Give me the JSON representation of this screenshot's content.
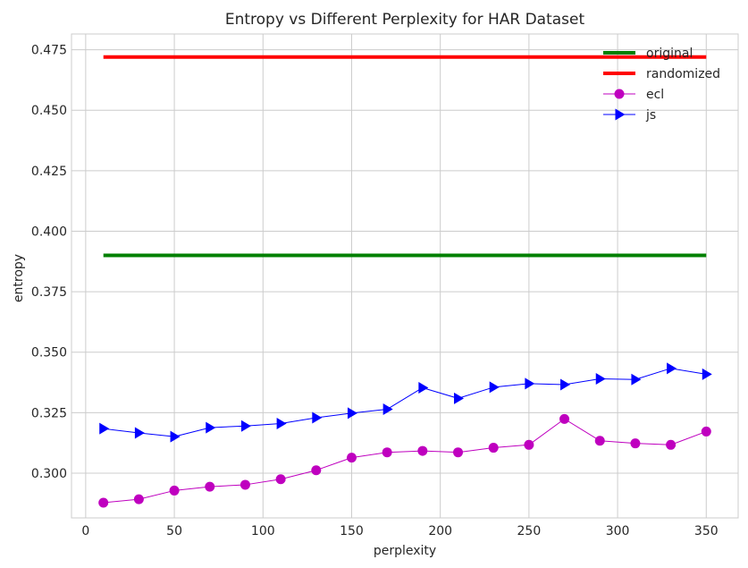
{
  "chart_data": {
    "type": "line",
    "title": "Entropy vs Different Perplexity for HAR Dataset",
    "xlabel": "perplexity",
    "ylabel": "entropy",
    "xlim": [
      -8,
      368
    ],
    "ylim": [
      0.2815,
      0.4815
    ],
    "xticks": [
      0,
      50,
      100,
      150,
      200,
      250,
      300,
      350
    ],
    "xtick_labels": [
      "0",
      "50",
      "100",
      "150",
      "200",
      "250",
      "300",
      "350"
    ],
    "yticks": [
      0.3,
      0.325,
      0.35,
      0.375,
      0.4,
      0.425,
      0.45,
      0.475
    ],
    "ytick_labels": [
      "0.300",
      "0.325",
      "0.350",
      "0.375",
      "0.400",
      "0.425",
      "0.450",
      "0.475"
    ],
    "grid": true,
    "legend_position": "top-right",
    "x": [
      10,
      30,
      50,
      70,
      90,
      110,
      130,
      150,
      170,
      190,
      210,
      230,
      250,
      270,
      290,
      310,
      330,
      350
    ],
    "series": [
      {
        "name": "original",
        "color": "#008000",
        "marker": "none",
        "linewidth": 4,
        "values": [
          0.39,
          0.39,
          0.39,
          0.39,
          0.39,
          0.39,
          0.39,
          0.39,
          0.39,
          0.39,
          0.39,
          0.39,
          0.39,
          0.39,
          0.39,
          0.39,
          0.39,
          0.39
        ]
      },
      {
        "name": "randomized",
        "color": "#ff0000",
        "marker": "none",
        "linewidth": 4,
        "values": [
          0.472,
          0.472,
          0.472,
          0.472,
          0.472,
          0.472,
          0.472,
          0.472,
          0.472,
          0.472,
          0.472,
          0.472,
          0.472,
          0.472,
          0.472,
          0.472,
          0.472,
          0.472
        ]
      },
      {
        "name": "ecl",
        "color": "#bf00bf",
        "marker": "circle",
        "linewidth": 1,
        "values": [
          0.2878,
          0.2892,
          0.2928,
          0.2944,
          0.2952,
          0.2975,
          0.3012,
          0.3064,
          0.3086,
          0.3092,
          0.3086,
          0.3105,
          0.3117,
          0.3224,
          0.3134,
          0.3123,
          0.3117,
          0.3172
        ]
      },
      {
        "name": "js",
        "color": "#0000ff",
        "marker": "triangle-right",
        "linewidth": 1,
        "values": [
          0.3184,
          0.3166,
          0.3151,
          0.3188,
          0.3195,
          0.3205,
          0.3229,
          0.3248,
          0.3264,
          0.3353,
          0.3309,
          0.3355,
          0.337,
          0.3366,
          0.339,
          0.3387,
          0.3433,
          0.3409
        ]
      }
    ]
  }
}
